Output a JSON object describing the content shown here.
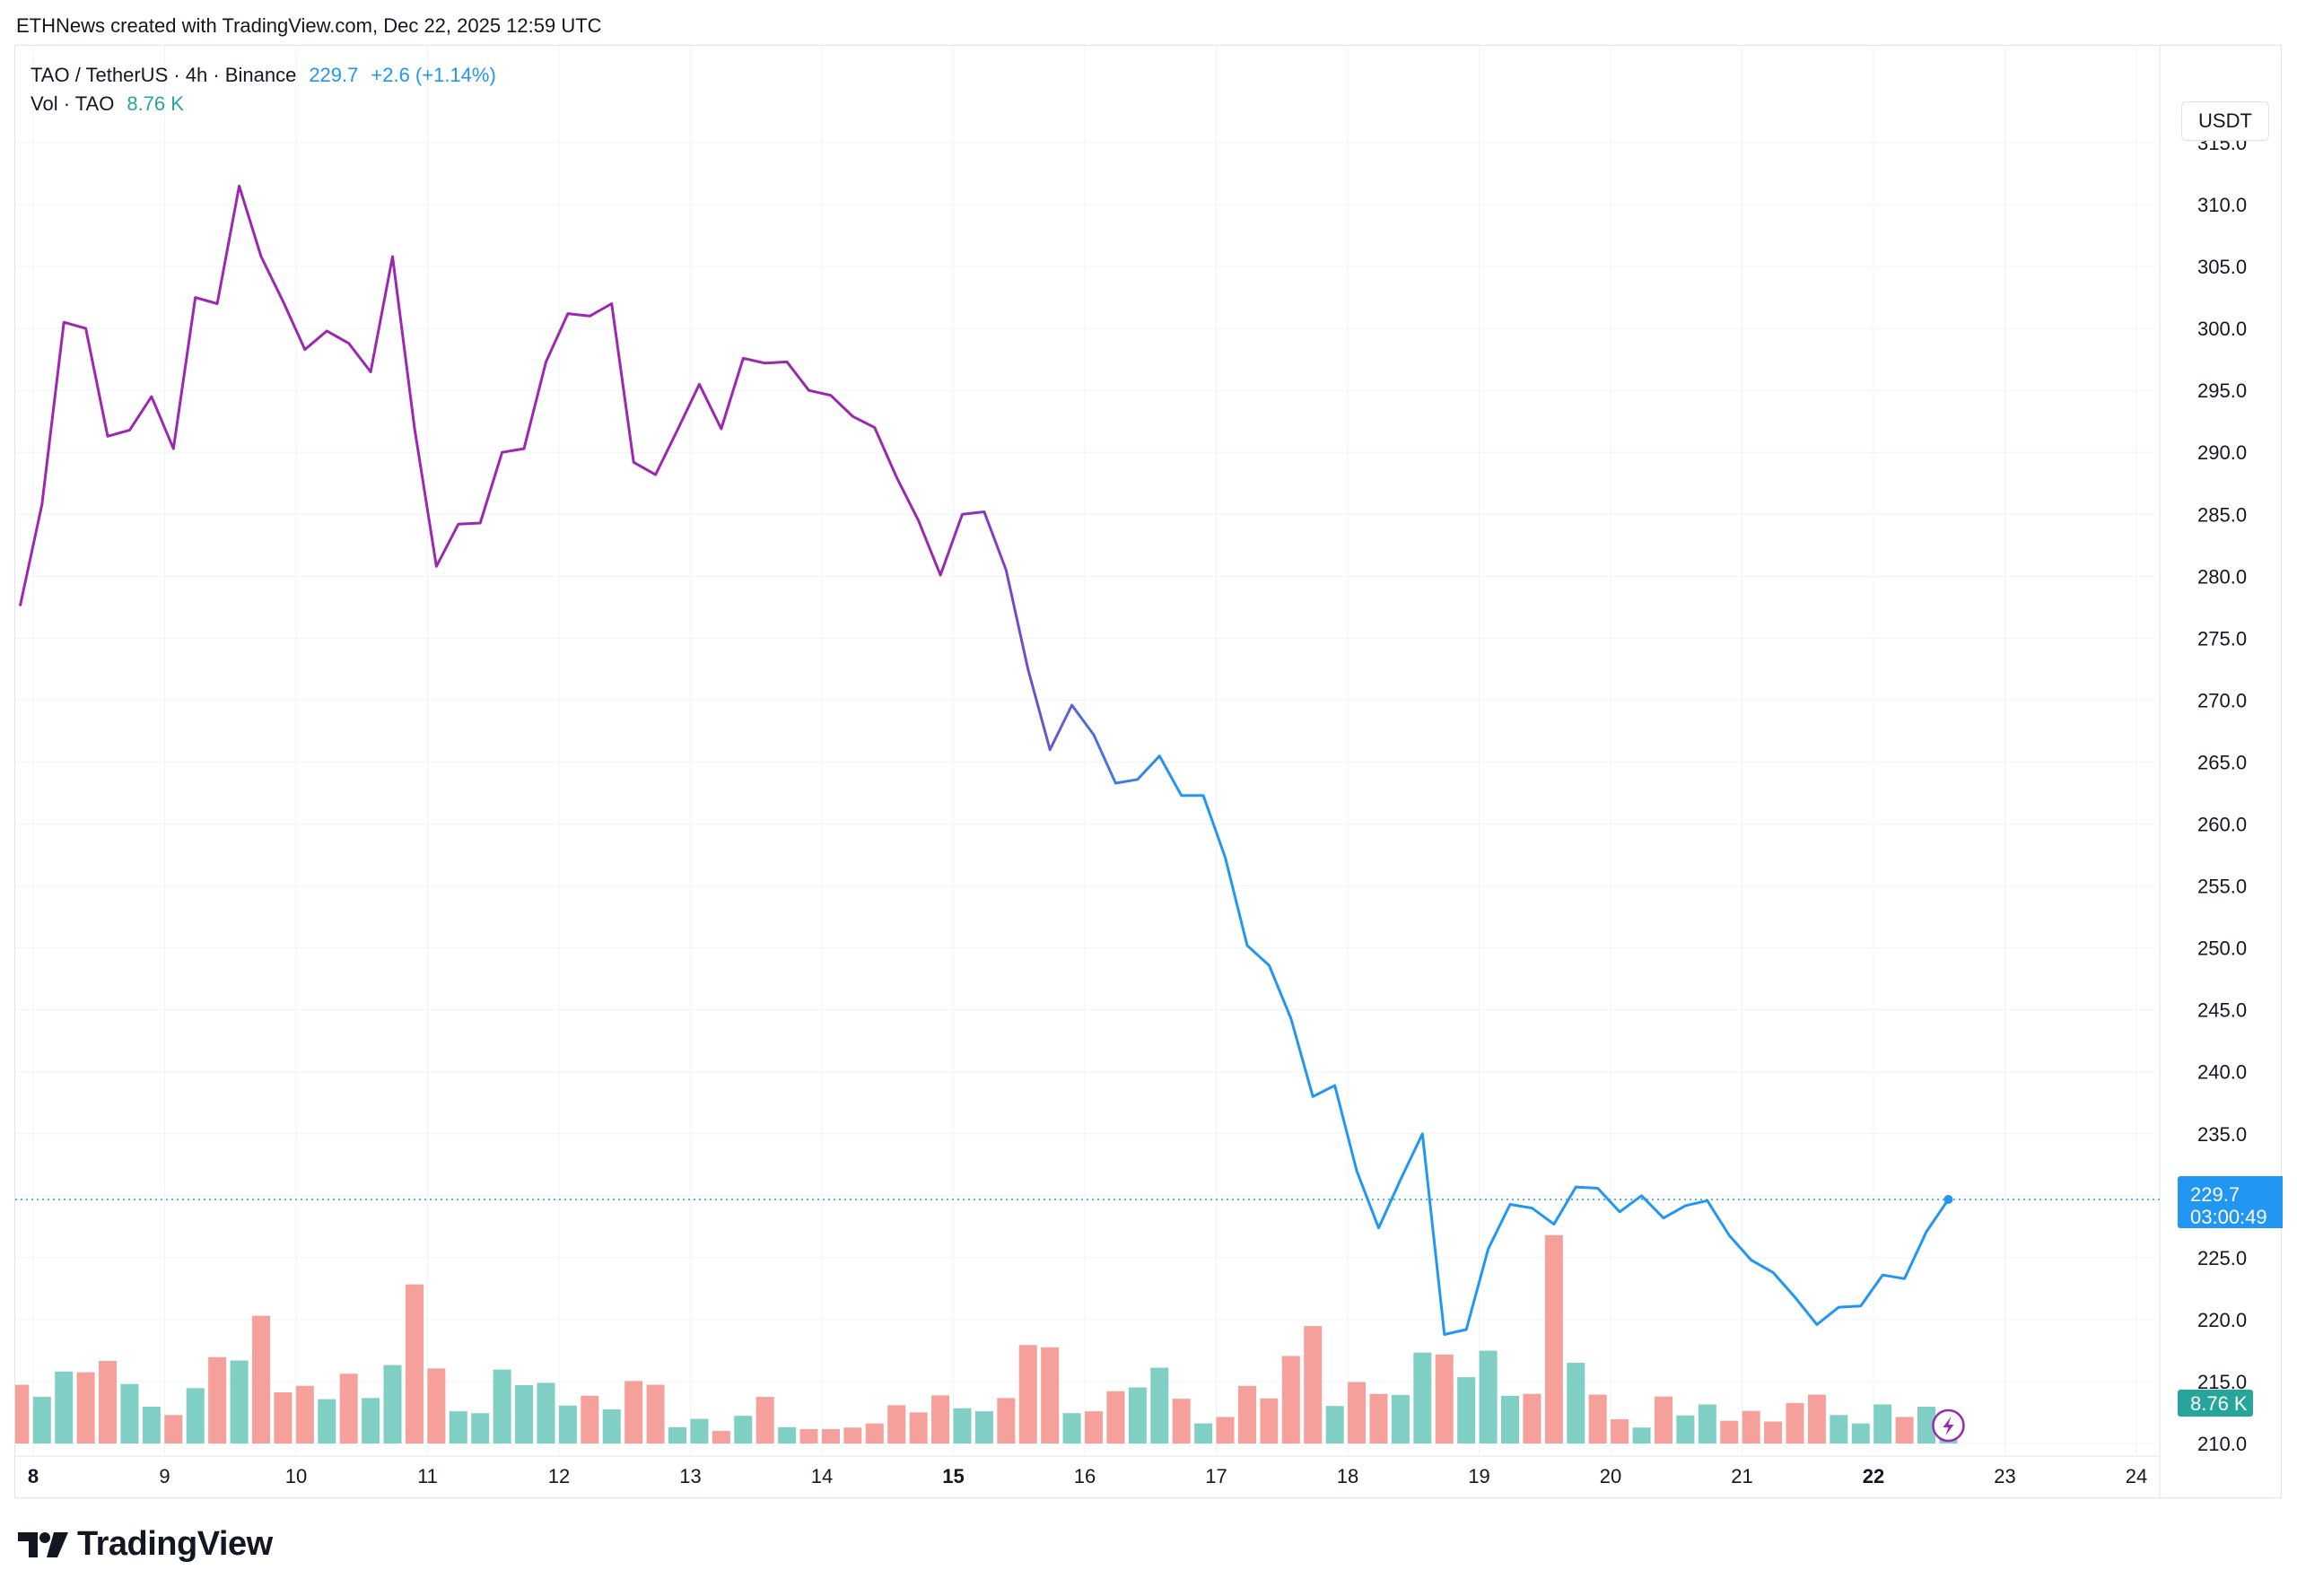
{
  "header": {
    "attribution": "ETHNews created with TradingView.com, Dec 22, 2025 12:59 UTC"
  },
  "legend": {
    "symbol": "TAO / TetherUS · 4h · Binance",
    "price": "229.7",
    "change": "+2.6 (+1.14%)",
    "vol_label": "Vol · TAO",
    "vol_value": "8.76 K"
  },
  "currency_button": "USDT",
  "last_price_label": {
    "price": "229.7",
    "countdown": "03:00:49"
  },
  "volume_label": "8.76 K",
  "footer": {
    "brand": "TradingView"
  },
  "colors": {
    "line_start": "#9c27b0",
    "line_end": "#2196f3",
    "vol_up": "#7fcfc4",
    "vol_down": "#f6a09b",
    "price_tag": "#2196f3",
    "vol_tag": "#26a69a"
  },
  "chart_data": {
    "type": "line",
    "title": "TAO / TetherUS · 4h · Binance",
    "xlabel": "",
    "ylabel": "USDT",
    "ylim": [
      210,
      320
    ],
    "x_ticks": [
      {
        "label": "8",
        "day": 8,
        "bold": true
      },
      {
        "label": "9",
        "day": 9,
        "bold": false
      },
      {
        "label": "10",
        "day": 10,
        "bold": false
      },
      {
        "label": "11",
        "day": 11,
        "bold": false
      },
      {
        "label": "12",
        "day": 12,
        "bold": false
      },
      {
        "label": "13",
        "day": 13,
        "bold": false
      },
      {
        "label": "14",
        "day": 14,
        "bold": false
      },
      {
        "label": "15",
        "day": 15,
        "bold": true
      },
      {
        "label": "16",
        "day": 16,
        "bold": false
      },
      {
        "label": "17",
        "day": 17,
        "bold": false
      },
      {
        "label": "18",
        "day": 18,
        "bold": false
      },
      {
        "label": "19",
        "day": 19,
        "bold": false
      },
      {
        "label": "20",
        "day": 20,
        "bold": false
      },
      {
        "label": "21",
        "day": 21,
        "bold": false
      },
      {
        "label": "22",
        "day": 22,
        "bold": true
      },
      {
        "label": "23",
        "day": 23,
        "bold": false
      },
      {
        "label": "24",
        "day": 24,
        "bold": false
      }
    ],
    "y_ticks": [
      "315.0",
      "310.0",
      "305.0",
      "300.0",
      "295.0",
      "290.0",
      "285.0",
      "280.0",
      "275.0",
      "270.0",
      "265.0",
      "260.0",
      "255.0",
      "250.0",
      "245.0",
      "240.0",
      "235.0",
      "230.0",
      "225.0",
      "220.0",
      "215.0",
      "210.0"
    ],
    "x_start_day": 7.9,
    "x_end_day": 24.0,
    "price_series": {
      "name": "TAO / TetherUS",
      "start_day": 7.9,
      "step_days": 0.1667,
      "values": [
        277.6,
        285.8,
        300.5,
        300.0,
        291.3,
        291.8,
        294.5,
        290.3,
        302.5,
        302.0,
        311.5,
        305.8,
        302.2,
        298.3,
        299.8,
        298.8,
        296.5,
        305.8,
        292.0,
        280.8,
        284.2,
        284.3,
        290.0,
        290.3,
        297.3,
        301.2,
        301.0,
        302.0,
        289.2,
        288.2,
        291.8,
        295.5,
        291.9,
        297.6,
        297.2,
        297.3,
        295.0,
        294.6,
        292.9,
        292.0,
        288.0,
        284.5,
        280.1,
        285.0,
        285.2,
        280.5,
        272.5,
        266.0,
        269.6,
        267.2,
        263.3,
        263.6,
        265.5,
        262.3,
        262.3,
        257.3,
        250.2,
        248.6,
        244.3,
        238.0,
        238.9,
        232.0,
        227.4,
        231.3,
        235.0,
        218.8,
        219.2,
        225.7,
        229.3,
        229.0,
        227.7,
        230.7,
        230.6,
        228.7,
        230.0,
        228.2,
        229.2,
        229.6,
        226.8,
        224.8,
        223.8,
        221.8,
        219.6,
        221.0,
        221.1,
        223.6,
        223.3,
        227.1,
        229.7
      ]
    },
    "volume_series": {
      "name": "Vol · TAO",
      "scale_max": 9,
      "bars": [
        {
          "v": 1.55,
          "up": false
        },
        {
          "v": 1.23,
          "up": true
        },
        {
          "v": 1.9,
          "up": true
        },
        {
          "v": 1.88,
          "up": false
        },
        {
          "v": 2.18,
          "up": false
        },
        {
          "v": 1.57,
          "up": true
        },
        {
          "v": 0.97,
          "up": true
        },
        {
          "v": 0.75,
          "up": false
        },
        {
          "v": 1.46,
          "up": true
        },
        {
          "v": 2.28,
          "up": false
        },
        {
          "v": 2.19,
          "up": true
        },
        {
          "v": 3.37,
          "up": false
        },
        {
          "v": 1.35,
          "up": false
        },
        {
          "v": 1.52,
          "up": false
        },
        {
          "v": 1.17,
          "up": true
        },
        {
          "v": 1.84,
          "up": false
        },
        {
          "v": 1.2,
          "up": true
        },
        {
          "v": 2.07,
          "up": true
        },
        {
          "v": 4.2,
          "up": false
        },
        {
          "v": 1.98,
          "up": false
        },
        {
          "v": 0.85,
          "up": true
        },
        {
          "v": 0.8,
          "up": true
        },
        {
          "v": 1.95,
          "up": true
        },
        {
          "v": 1.54,
          "up": true
        },
        {
          "v": 1.6,
          "up": true
        },
        {
          "v": 1.0,
          "up": true
        },
        {
          "v": 1.26,
          "up": false
        },
        {
          "v": 0.9,
          "up": true
        },
        {
          "v": 1.65,
          "up": false
        },
        {
          "v": 1.55,
          "up": false
        },
        {
          "v": 0.43,
          "up": true
        },
        {
          "v": 0.65,
          "up": true
        },
        {
          "v": 0.33,
          "up": false
        },
        {
          "v": 0.73,
          "up": true
        },
        {
          "v": 1.23,
          "up": false
        },
        {
          "v": 0.43,
          "up": true
        },
        {
          "v": 0.38,
          "up": false
        },
        {
          "v": 0.38,
          "up": false
        },
        {
          "v": 0.42,
          "up": false
        },
        {
          "v": 0.53,
          "up": false
        },
        {
          "v": 1.01,
          "up": false
        },
        {
          "v": 0.82,
          "up": false
        },
        {
          "v": 1.27,
          "up": false
        },
        {
          "v": 0.93,
          "up": true
        },
        {
          "v": 0.85,
          "up": true
        },
        {
          "v": 1.2,
          "up": false
        },
        {
          "v": 2.6,
          "up": false
        },
        {
          "v": 2.54,
          "up": false
        },
        {
          "v": 0.8,
          "up": true
        },
        {
          "v": 0.85,
          "up": false
        },
        {
          "v": 1.38,
          "up": false
        },
        {
          "v": 1.48,
          "up": true
        },
        {
          "v": 2.0,
          "up": true
        },
        {
          "v": 1.18,
          "up": false
        },
        {
          "v": 0.53,
          "up": true
        },
        {
          "v": 0.7,
          "up": false
        },
        {
          "v": 1.52,
          "up": false
        },
        {
          "v": 1.19,
          "up": false
        },
        {
          "v": 2.31,
          "up": false
        },
        {
          "v": 3.1,
          "up": false
        },
        {
          "v": 0.99,
          "up": true
        },
        {
          "v": 1.62,
          "up": false
        },
        {
          "v": 1.31,
          "up": false
        },
        {
          "v": 1.28,
          "up": true
        },
        {
          "v": 2.4,
          "up": true
        },
        {
          "v": 2.35,
          "up": false
        },
        {
          "v": 1.75,
          "up": true
        },
        {
          "v": 2.45,
          "up": true
        },
        {
          "v": 1.26,
          "up": true
        },
        {
          "v": 1.31,
          "up": false
        },
        {
          "v": 5.5,
          "up": false
        },
        {
          "v": 2.13,
          "up": true
        },
        {
          "v": 1.29,
          "up": false
        },
        {
          "v": 0.64,
          "up": false
        },
        {
          "v": 0.42,
          "up": true
        },
        {
          "v": 1.24,
          "up": false
        },
        {
          "v": 0.74,
          "up": true
        },
        {
          "v": 1.03,
          "up": true
        },
        {
          "v": 0.6,
          "up": false
        },
        {
          "v": 0.86,
          "up": false
        },
        {
          "v": 0.58,
          "up": false
        },
        {
          "v": 1.07,
          "up": false
        },
        {
          "v": 1.29,
          "up": false
        },
        {
          "v": 0.75,
          "up": true
        },
        {
          "v": 0.53,
          "up": true
        },
        {
          "v": 1.03,
          "up": true
        },
        {
          "v": 0.7,
          "up": false
        },
        {
          "v": 0.97,
          "up": true
        },
        {
          "v": 0.83,
          "up": true
        }
      ]
    },
    "last_price": 229.7,
    "grid": true,
    "legend": "top-left"
  }
}
